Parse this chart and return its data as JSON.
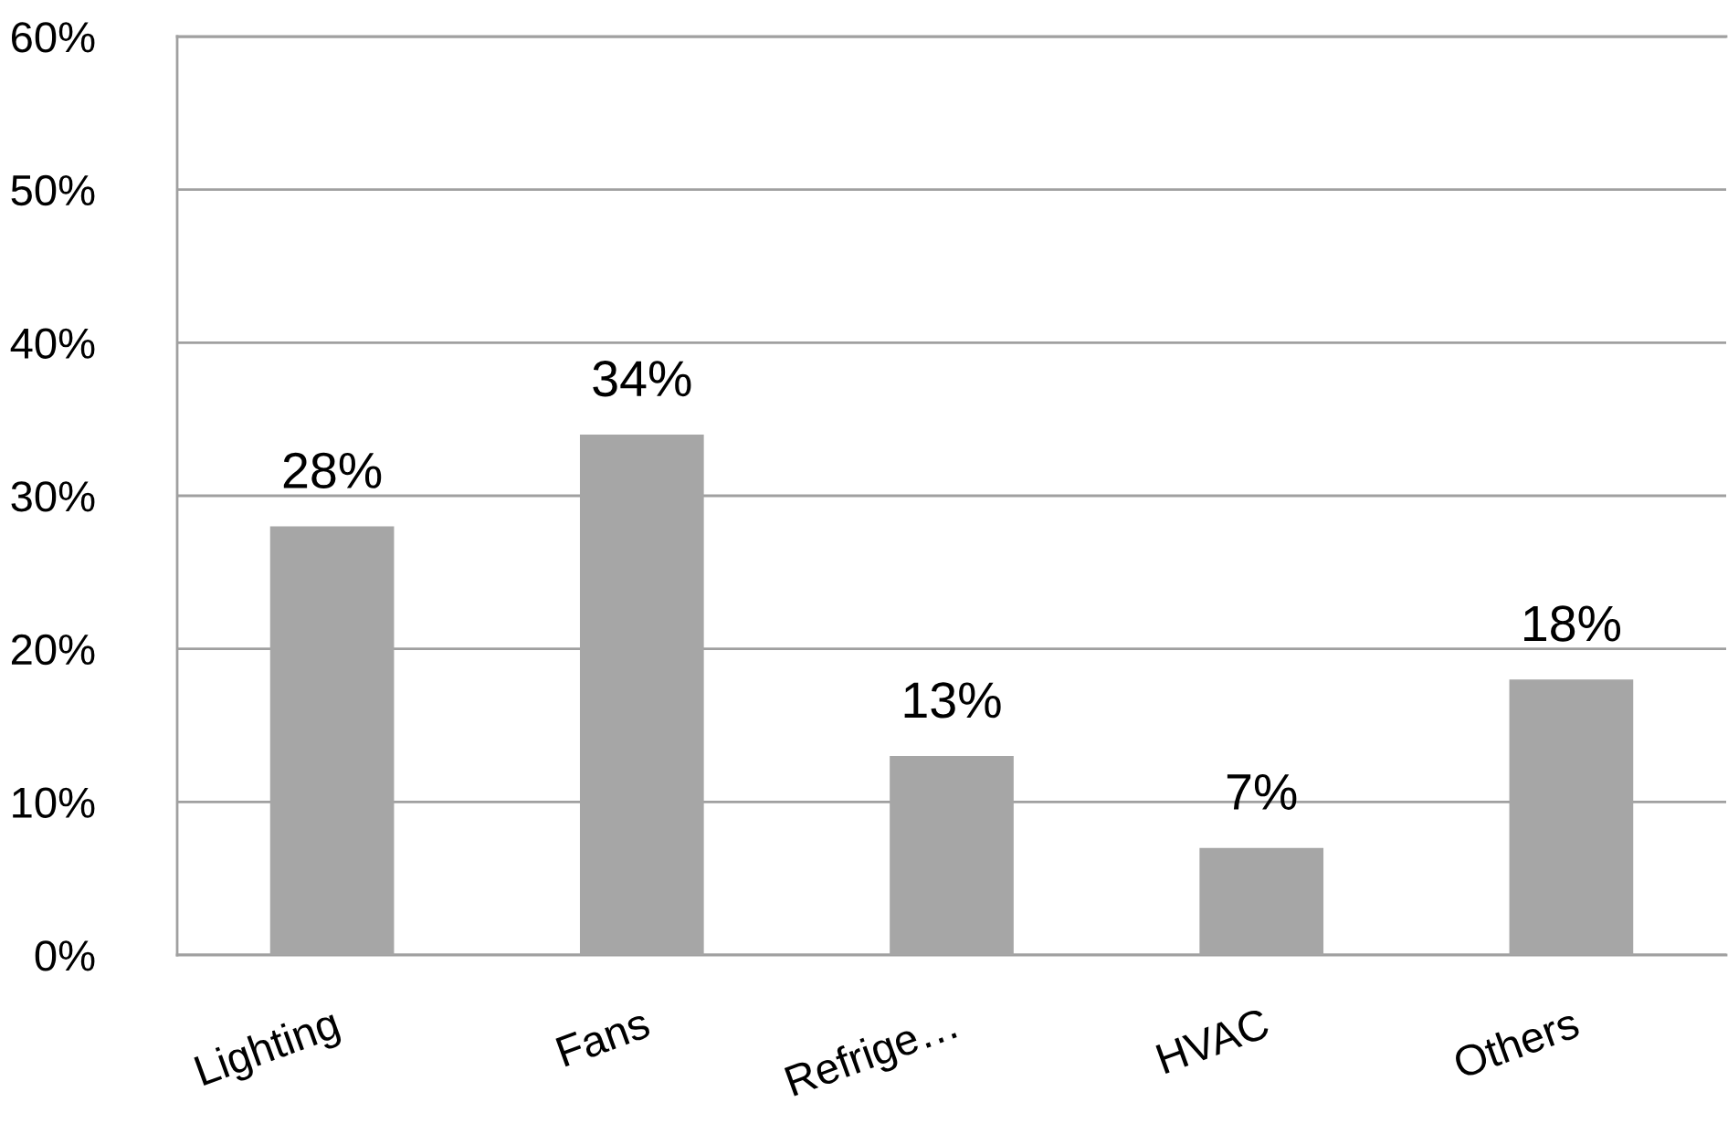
{
  "chart_data": {
    "type": "bar",
    "categories": [
      "Lighting",
      "Fans",
      "Refrige…",
      "HVAC",
      "Others"
    ],
    "values": [
      28,
      34,
      13,
      7,
      18
    ],
    "color": "#a6a6a6",
    "value_labels": [
      "28%",
      "34%",
      "13%",
      "7%",
      "18%"
    ],
    "ylim": [
      0,
      60
    ],
    "yticks": [
      {
        "value": 0,
        "label": "0%"
      },
      {
        "value": 10,
        "label": "10%"
      },
      {
        "value": 20,
        "label": "20%"
      },
      {
        "value": 30,
        "label": "30%"
      },
      {
        "value": 40,
        "label": "40%"
      },
      {
        "value": 50,
        "label": "50%"
      },
      {
        "value": 60,
        "label": "60%"
      }
    ],
    "grid": "y"
  }
}
